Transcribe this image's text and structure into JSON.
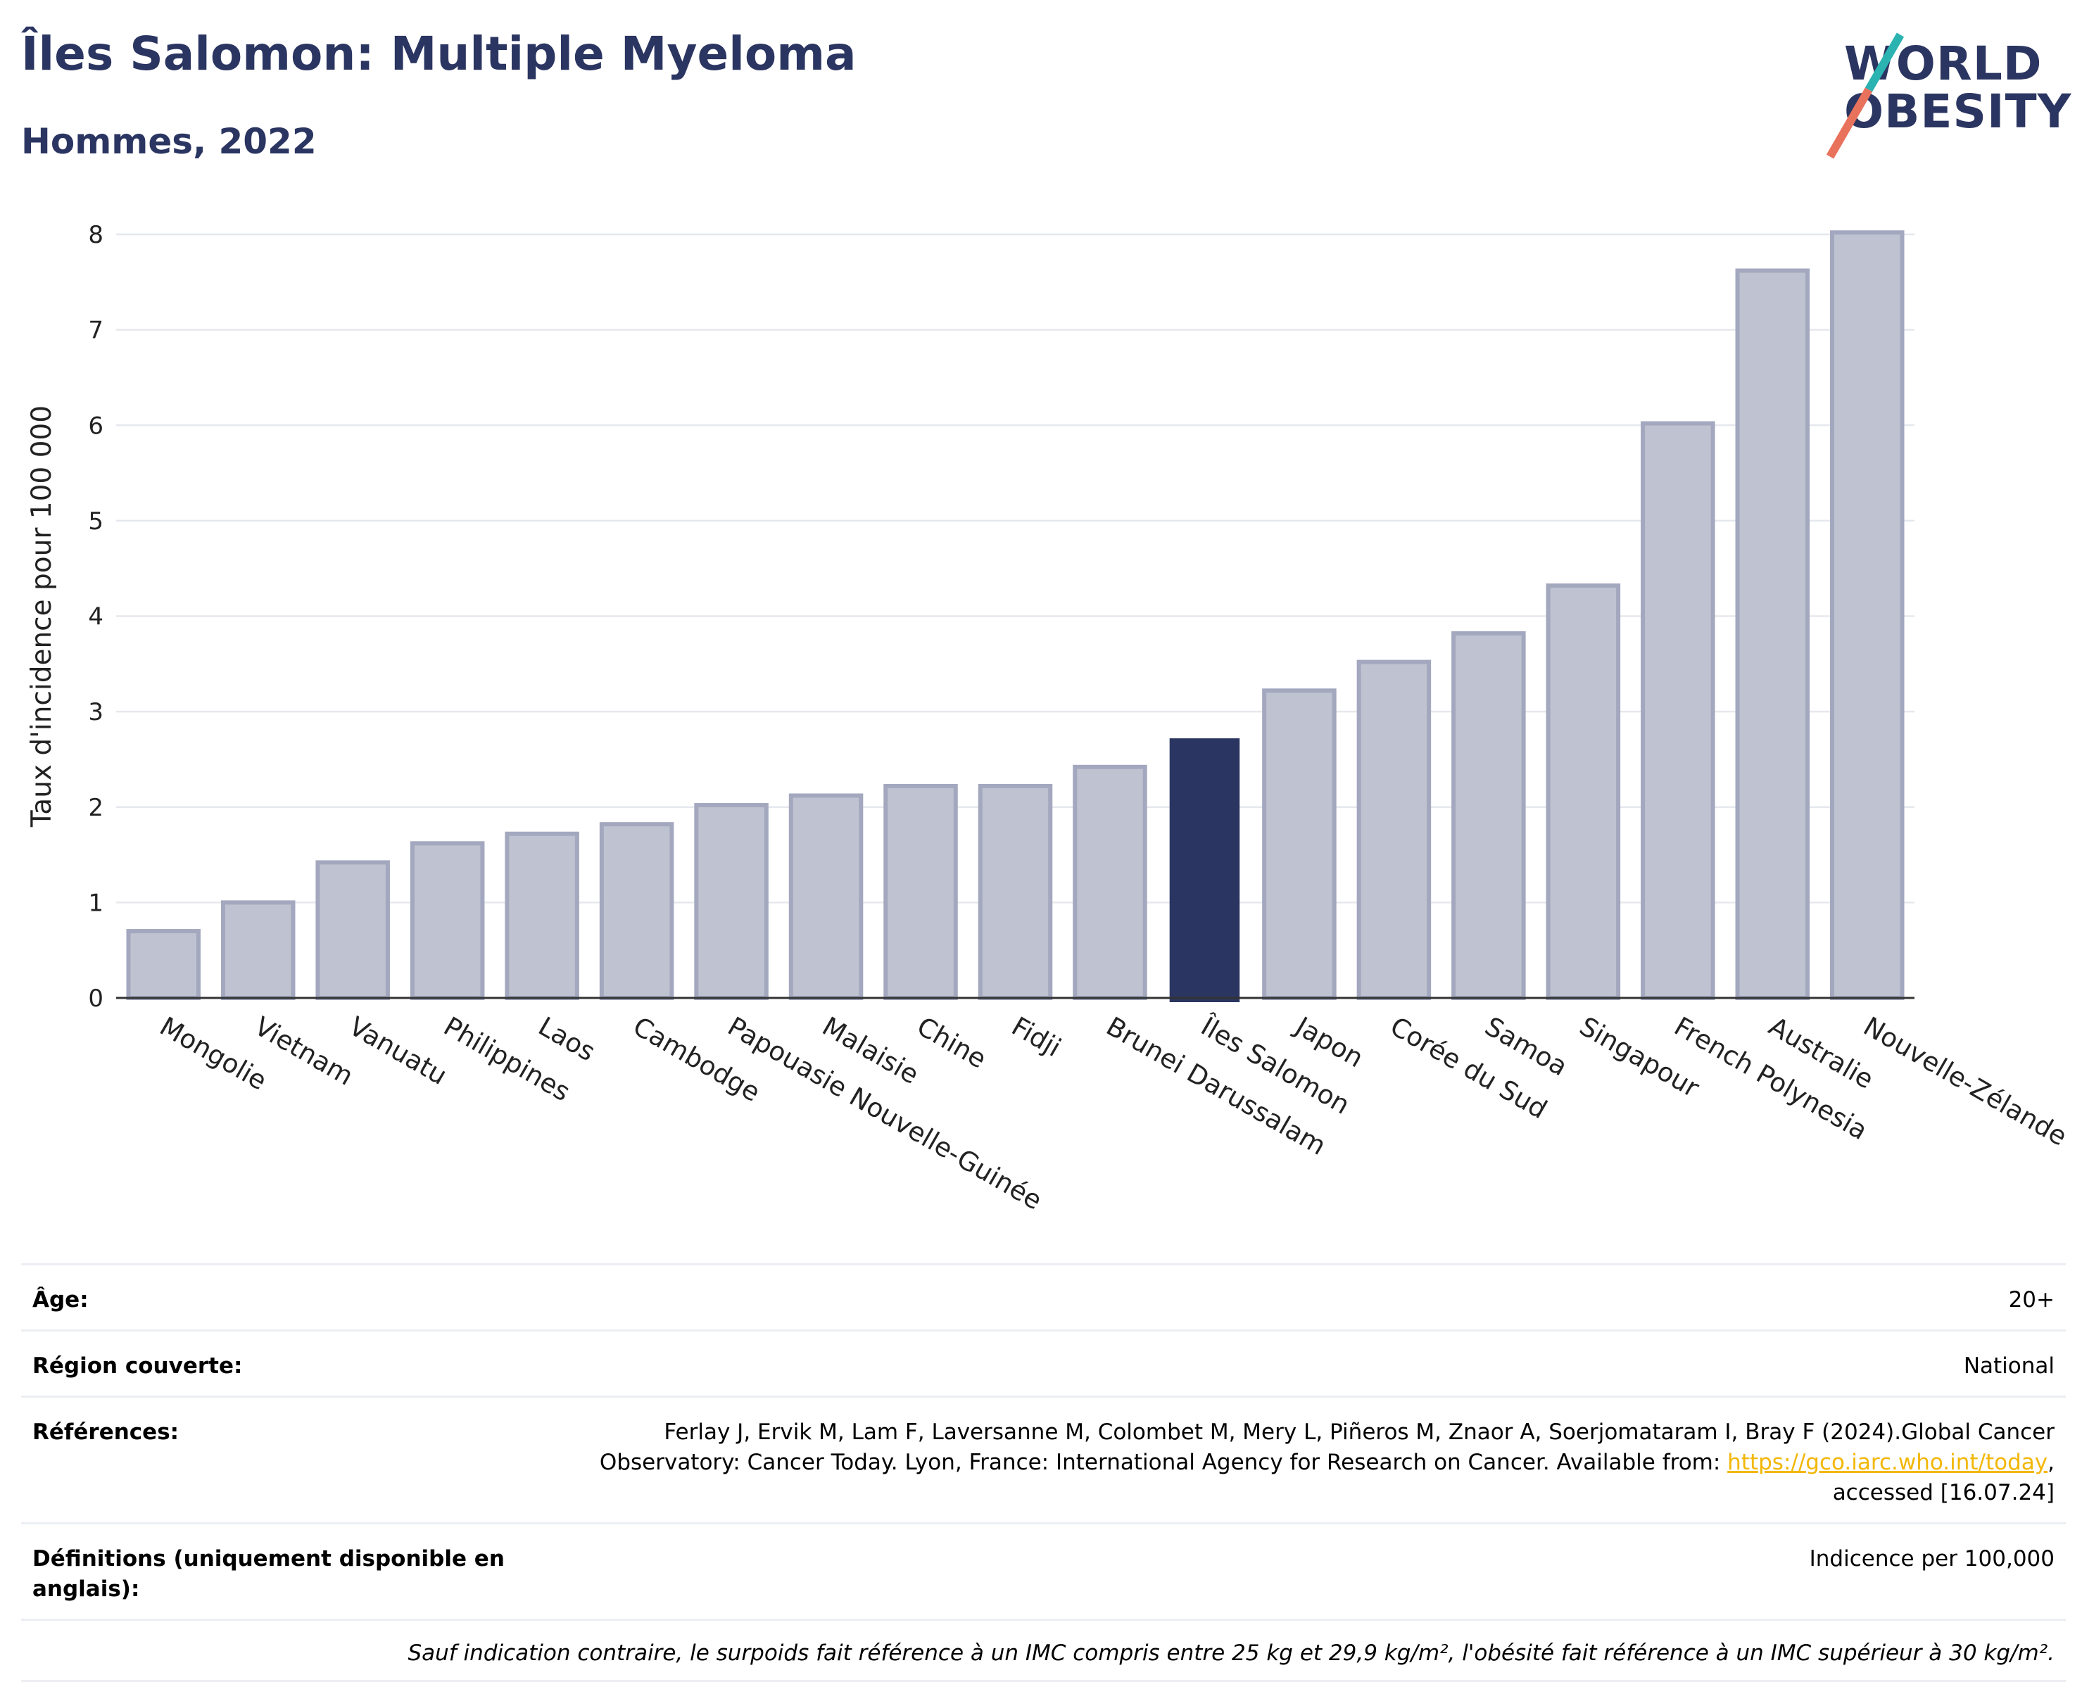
{
  "header": {
    "title": "Îles Salomon: Multiple Myeloma",
    "subtitle": "Hommes, 2022"
  },
  "logo": {
    "line1": "WORLD",
    "line2": "OBESITY",
    "colors": {
      "text": "#2b3561",
      "slash_top": "#2bb3b1",
      "slash_bottom": "#e8725c"
    }
  },
  "chart_data": {
    "type": "bar",
    "ylabel": "Taux d'incidence pour 100 000",
    "ylim": [
      0,
      8
    ],
    "yticks": [
      0,
      1,
      2,
      3,
      4,
      5,
      6,
      7,
      8
    ],
    "grid": true,
    "highlight": "Îles Salomon",
    "colors": {
      "bar": "#bfc2d0",
      "bar_edge": "#a3a8bf",
      "highlight": "#2b3561"
    },
    "categories": [
      "Mongolie",
      "Vietnam",
      "Vanuatu",
      "Philippines",
      "Laos",
      "Cambodge",
      "Papouasie Nouvelle-Guinée",
      "Malaisie",
      "Chine",
      "Fidji",
      "Brunei Darussalam",
      "Îles Salomon",
      "Japon",
      "Corée du Sud",
      "Samoa",
      "Singapour",
      "French Polynesia",
      "Australie",
      "Nouvelle-Zélande"
    ],
    "values": [
      0.7,
      1.0,
      1.42,
      1.62,
      1.72,
      1.82,
      2.02,
      2.12,
      2.22,
      2.22,
      2.42,
      2.72,
      3.22,
      3.52,
      3.82,
      4.32,
      6.02,
      7.62,
      8.02
    ]
  },
  "meta": {
    "age": {
      "label": "Âge:",
      "value": "20+"
    },
    "region": {
      "label": "Région couverte:",
      "value": "National"
    },
    "references": {
      "label": "Références:",
      "text_before": "Ferlay J, Ervik M, Lam F, Laversanne M, Colombet M, Mery L, Piñeros M, Znaor A, Soerjomataram I, Bray F (2024).Global Cancer Observatory: Cancer Today. Lyon, France: International Agency for Research on Cancer. Available from: ",
      "link": "https://gco.iarc.who.int/today",
      "text_after": ", accessed [16.07.24]"
    },
    "definitions": {
      "label": "Définitions (uniquement disponible en anglais):",
      "value": "Indicence per 100,000"
    },
    "note": "Sauf indication contraire, le surpoids fait référence à un IMC compris entre 25 kg et 29,9 kg/m², l'obésité fait référence à un IMC supérieur à 30 kg/m²."
  }
}
